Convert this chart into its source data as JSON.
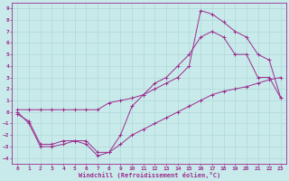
{
  "xlabel": "Windchill (Refroidissement éolien,°C)",
  "bg_color": "#c8eaea",
  "grid_color": "#b0d8d8",
  "line_color": "#9b2d8e",
  "xlim": [
    -0.5,
    23.5
  ],
  "ylim": [
    -4.5,
    9.5
  ],
  "xticks": [
    0,
    1,
    2,
    3,
    4,
    5,
    6,
    7,
    8,
    9,
    10,
    11,
    12,
    13,
    14,
    15,
    16,
    17,
    18,
    19,
    20,
    21,
    22,
    23
  ],
  "yticks": [
    -4,
    -3,
    -2,
    -1,
    0,
    1,
    2,
    3,
    4,
    5,
    6,
    7,
    8,
    9
  ],
  "line1_x": [
    0,
    1,
    2,
    3,
    4,
    5,
    6,
    7,
    8,
    9,
    10,
    11,
    12,
    13,
    14,
    15,
    16,
    17,
    18,
    19,
    20,
    21,
    22,
    23
  ],
  "line1_y": [
    0,
    -1,
    -3,
    -3,
    -2.8,
    -2.5,
    -2.8,
    -3.8,
    -3.5,
    -2,
    0.5,
    1.5,
    2.5,
    3,
    4,
    5,
    6.5,
    7,
    6.5,
    5,
    5,
    3,
    3,
    1.2
  ],
  "line2_x": [
    0,
    1,
    2,
    3,
    4,
    5,
    6,
    7,
    8,
    9,
    10,
    11,
    12,
    13,
    14,
    15,
    16,
    17,
    18,
    19,
    20,
    21,
    22,
    23
  ],
  "line2_y": [
    -0.2,
    -0.8,
    -2.8,
    -2.8,
    -2.5,
    -2.5,
    -2.5,
    -3.5,
    -3.5,
    -2.8,
    -2,
    -1.5,
    -1,
    -0.5,
    0,
    0.5,
    1,
    1.5,
    1.8,
    2,
    2.2,
    2.5,
    2.8,
    3
  ],
  "line3_x": [
    0,
    1,
    2,
    3,
    4,
    5,
    6,
    7,
    8,
    9,
    10,
    11,
    12,
    13,
    14,
    15,
    16,
    17,
    18,
    19,
    20,
    21,
    22,
    23
  ],
  "line3_y": [
    0.2,
    0.2,
    0.2,
    0.2,
    0.2,
    0.2,
    0.2,
    0.2,
    0.8,
    1,
    1.2,
    1.5,
    2,
    2.5,
    3,
    4,
    8.8,
    8.5,
    7.8,
    7,
    6.5,
    5,
    4.5,
    1.2
  ]
}
